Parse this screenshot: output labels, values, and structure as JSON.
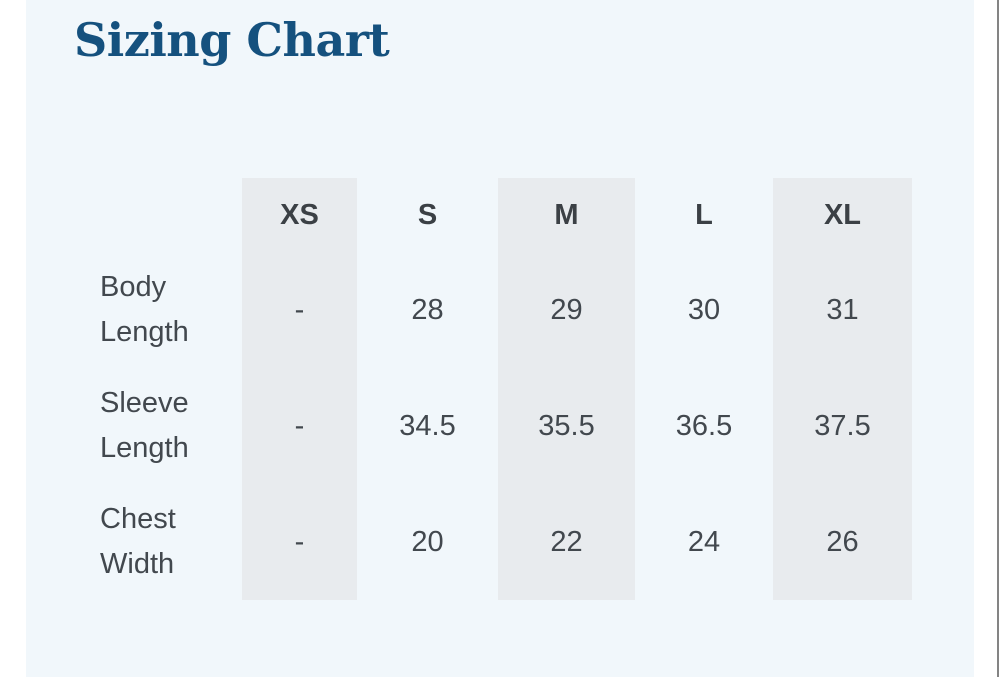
{
  "page": {
    "title": "Sizing Chart"
  },
  "chart_data": {
    "type": "table",
    "title": "Sizing Chart",
    "columns": [
      "XS",
      "S",
      "M",
      "L",
      "XL"
    ],
    "rows": [
      {
        "label": "Body Length",
        "values": [
          "-",
          "28",
          "29",
          "30",
          "31"
        ]
      },
      {
        "label": "Sleeve Length",
        "values": [
          "-",
          "34.5",
          "35.5",
          "36.5",
          "37.5"
        ]
      },
      {
        "label": "Chest Width",
        "values": [
          "-",
          "20",
          "22",
          "24",
          "26"
        ]
      }
    ],
    "layout_hints": {
      "striped_columns": [
        "XS",
        "M",
        "XL"
      ],
      "header_position": "top",
      "row_label_position": "left"
    }
  },
  "colors": {
    "background": "#ffffff",
    "card_background": "#f1f7fb",
    "stripe": "#e8ebee",
    "title": "#15517e",
    "header_text": "#3b4045",
    "body_text": "#42484e",
    "right_border": "#848484"
  }
}
